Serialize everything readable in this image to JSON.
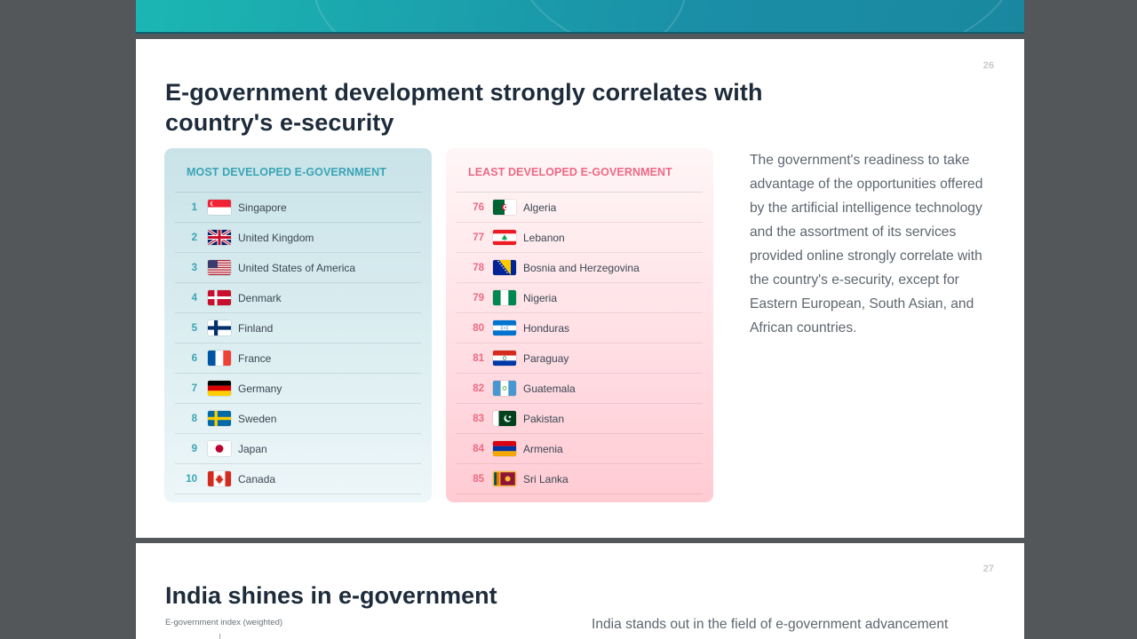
{
  "slides": {
    "current": {
      "page_number": "26",
      "title": "E-government development strongly correlates with country's e-security",
      "description": "The government's readiness to take advantage of the opportunities offered by the artificial intelligence technology and the assortment of its services provided online strongly correlate with the country's e-security, except for Eastern European, South Asian, and African countries.",
      "most_developed": {
        "heading": "MOST DEVELOPED E-GOVERNMENT",
        "accent_color": "#3aa4b4",
        "rows": [
          {
            "rank": "1",
            "country": "Singapore",
            "flag": "singapore-flag"
          },
          {
            "rank": "2",
            "country": "United Kingdom",
            "flag": "united-kingdom-flag"
          },
          {
            "rank": "3",
            "country": "United States of America",
            "flag": "usa-flag"
          },
          {
            "rank": "4",
            "country": "Denmark",
            "flag": "denmark-flag"
          },
          {
            "rank": "5",
            "country": "Finland",
            "flag": "finland-flag"
          },
          {
            "rank": "6",
            "country": "France",
            "flag": "france-flag"
          },
          {
            "rank": "7",
            "country": "Germany",
            "flag": "germany-flag"
          },
          {
            "rank": "8",
            "country": "Sweden",
            "flag": "sweden-flag"
          },
          {
            "rank": "9",
            "country": "Japan",
            "flag": "japan-flag"
          },
          {
            "rank": "10",
            "country": "Canada",
            "flag": "canada-flag"
          }
        ]
      },
      "least_developed": {
        "heading": "LEAST DEVELOPED E-GOVERNMENT",
        "accent_color": "#ec6a83",
        "rows": [
          {
            "rank": "76",
            "country": "Algeria",
            "flag": "algeria-flag"
          },
          {
            "rank": "77",
            "country": "Lebanon",
            "flag": "lebanon-flag"
          },
          {
            "rank": "78",
            "country": "Bosnia and Herzegovina",
            "flag": "bosnia-flag"
          },
          {
            "rank": "79",
            "country": "Nigeria",
            "flag": "nigeria-flag"
          },
          {
            "rank": "80",
            "country": "Honduras",
            "flag": "honduras-flag"
          },
          {
            "rank": "81",
            "country": "Paraguay",
            "flag": "paraguay-flag"
          },
          {
            "rank": "82",
            "country": "Guatemala",
            "flag": "guatemala-flag"
          },
          {
            "rank": "83",
            "country": "Pakistan",
            "flag": "pakistan-flag"
          },
          {
            "rank": "84",
            "country": "Armenia",
            "flag": "armenia-flag"
          },
          {
            "rank": "85",
            "country": "Sri Lanka",
            "flag": "sri-lanka-flag"
          }
        ]
      }
    },
    "next": {
      "page_number": "27",
      "title": "India shines in e-government",
      "axis_label": "E-government index (weighted)",
      "description_start": "India stands out in the field of e-government advancement"
    }
  }
}
